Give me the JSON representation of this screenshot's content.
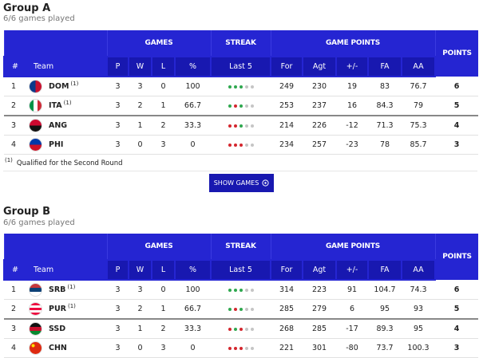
{
  "groups": [
    {
      "title": "Group A",
      "subtitle": "6/6 games played",
      "column_groups": [
        "GAMES",
        "STREAK",
        "GAME POINTS",
        "POINTS"
      ],
      "columns": [
        "#",
        "Team",
        "P",
        "W",
        "L",
        "%",
        "Last 5",
        "For",
        "Agt",
        "+/-",
        "FA",
        "AA"
      ],
      "rows": [
        {
          "rank": 1,
          "team": "DOM",
          "note": "(1)",
          "p": 3,
          "w": 3,
          "l": 0,
          "pct": 100,
          "last5": [
            "W",
            "W",
            "W",
            null,
            null
          ],
          "for": 249,
          "agt": 230,
          "diff": 19,
          "fa": 83,
          "aa": 76.7,
          "pts": 6
        },
        {
          "rank": 2,
          "team": "ITA",
          "note": "(1)",
          "p": 3,
          "w": 2,
          "l": 1,
          "pct": 66.7,
          "last5": [
            "W",
            "L",
            "W",
            null,
            null
          ],
          "for": 253,
          "agt": 237,
          "diff": 16,
          "fa": 84.3,
          "aa": 79,
          "pts": 5
        },
        {
          "rank": 3,
          "team": "ANG",
          "p": 3,
          "w": 1,
          "l": 2,
          "pct": 33.3,
          "last5": [
            "L",
            "L",
            "W",
            null,
            null
          ],
          "for": 214,
          "agt": 226,
          "diff": -12,
          "fa": 71.3,
          "aa": 75.3,
          "pts": 4
        },
        {
          "rank": 4,
          "team": "PHI",
          "p": 3,
          "w": 0,
          "l": 3,
          "pct": 0,
          "last5": [
            "L",
            "L",
            "L",
            null,
            null
          ],
          "for": 234,
          "agt": 257,
          "diff": -23,
          "fa": 78,
          "aa": 85.7,
          "pts": 3
        }
      ],
      "footnote": {
        "marker": "(1)",
        "text": "Qualified for the Second Round"
      },
      "button": "SHOW GAMES"
    },
    {
      "title": "Group B",
      "subtitle": "6/6 games played",
      "column_groups": [
        "GAMES",
        "STREAK",
        "GAME POINTS",
        "POINTS"
      ],
      "columns": [
        "#",
        "Team",
        "P",
        "W",
        "L",
        "%",
        "Last 5",
        "For",
        "Agt",
        "+/-",
        "FA",
        "AA"
      ],
      "rows": [
        {
          "rank": 1,
          "team": "SRB",
          "note": "(1)",
          "p": 3,
          "w": 3,
          "l": 0,
          "pct": 100,
          "last5": [
            "W",
            "W",
            "W",
            null,
            null
          ],
          "for": 314,
          "agt": 223,
          "diff": 91,
          "fa": 104.7,
          "aa": 74.3,
          "pts": 6
        },
        {
          "rank": 2,
          "team": "PUR",
          "note": "(1)",
          "p": 3,
          "w": 2,
          "l": 1,
          "pct": 66.7,
          "last5": [
            "W",
            "L",
            "W",
            null,
            null
          ],
          "for": 285,
          "agt": 279,
          "diff": 6,
          "fa": 95,
          "aa": 93,
          "pts": 5
        },
        {
          "rank": 3,
          "team": "SSD",
          "p": 3,
          "w": 1,
          "l": 2,
          "pct": 33.3,
          "last5": [
            "L",
            "W",
            "L",
            null,
            null
          ],
          "for": 268,
          "agt": 285,
          "diff": -17,
          "fa": 89.3,
          "aa": 95,
          "pts": 4
        },
        {
          "rank": 4,
          "team": "CHN",
          "p": 3,
          "w": 0,
          "l": 3,
          "pct": 0,
          "last5": [
            "L",
            "L",
            "L",
            null,
            null
          ],
          "for": 221,
          "agt": 301,
          "diff": -80,
          "fa": 73.7,
          "aa": 100.3,
          "pts": 3
        }
      ]
    }
  ]
}
